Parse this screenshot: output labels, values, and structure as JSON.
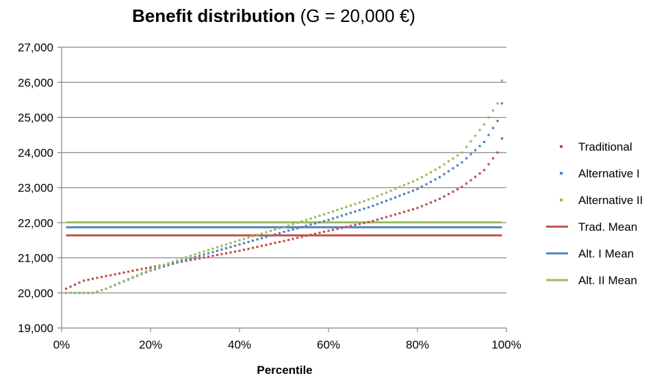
{
  "chart_data": {
    "type": "line",
    "title": "Benefit distribution",
    "subtitle": "(G = 20,000 €)",
    "xlabel": "Percentile",
    "ylabel": "",
    "xlim": [
      0,
      100
    ],
    "ylim": [
      19000,
      27000
    ],
    "x_ticks": [
      "0%",
      "20%",
      "40%",
      "60%",
      "80%",
      "100%"
    ],
    "y_ticks": [
      "19,000",
      "20,000",
      "21,000",
      "22,000",
      "23,000",
      "24,000",
      "25,000",
      "26,000",
      "27,000"
    ],
    "grid": true,
    "legend_position": "right",
    "x_percentiles": "1-99",
    "series": [
      {
        "name": "Traditional",
        "style": "dotted",
        "color": "#c0504d",
        "key_points": [
          [
            1,
            20120
          ],
          [
            5,
            20350
          ],
          [
            10,
            20480
          ],
          [
            20,
            20730
          ],
          [
            30,
            20960
          ],
          [
            40,
            21200
          ],
          [
            50,
            21480
          ],
          [
            60,
            21770
          ],
          [
            70,
            22050
          ],
          [
            80,
            22420
          ],
          [
            85,
            22680
          ],
          [
            90,
            23020
          ],
          [
            95,
            23500
          ],
          [
            98,
            24000
          ],
          [
            99,
            24400
          ]
        ]
      },
      {
        "name": "Alternative I",
        "style": "dotted",
        "color": "#4f81bd",
        "key_points": [
          [
            1,
            20000
          ],
          [
            7,
            20000
          ],
          [
            10,
            20120
          ],
          [
            20,
            20640
          ],
          [
            30,
            21020
          ],
          [
            40,
            21380
          ],
          [
            50,
            21740
          ],
          [
            60,
            22080
          ],
          [
            70,
            22480
          ],
          [
            80,
            22960
          ],
          [
            85,
            23300
          ],
          [
            90,
            23720
          ],
          [
            95,
            24300
          ],
          [
            98,
            24900
          ],
          [
            99,
            25400
          ]
        ]
      },
      {
        "name": "Alternative II",
        "style": "dotted",
        "color": "#9bbb59",
        "key_points": [
          [
            1,
            20000
          ],
          [
            7,
            20000
          ],
          [
            10,
            20120
          ],
          [
            20,
            20670
          ],
          [
            30,
            21100
          ],
          [
            40,
            21500
          ],
          [
            50,
            21880
          ],
          [
            60,
            22280
          ],
          [
            70,
            22700
          ],
          [
            80,
            23230
          ],
          [
            85,
            23580
          ],
          [
            90,
            24000
          ],
          [
            95,
            24800
          ],
          [
            98,
            25400
          ],
          [
            99,
            26050
          ]
        ]
      },
      {
        "name": "Trad. Mean",
        "style": "solid",
        "color": "#c0504d",
        "value": 21640
      },
      {
        "name": "Alt. I Mean",
        "style": "solid",
        "color": "#4f81bd",
        "value": 21870
      },
      {
        "name": "Alt. II Mean",
        "style": "solid",
        "color": "#9bbb59",
        "value": 22010
      }
    ]
  }
}
